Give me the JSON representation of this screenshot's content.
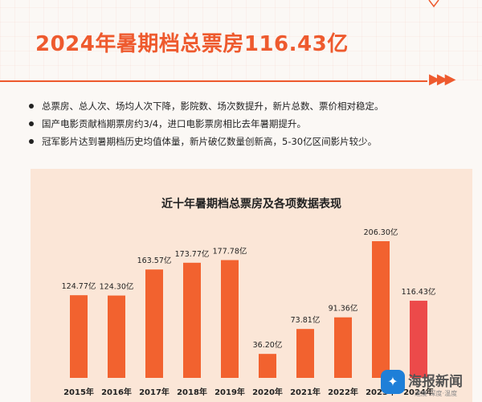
{
  "header": {
    "title": "2024年暑期档总票房116.43亿",
    "arrows": "▶▶▶"
  },
  "bullets": [
    "总票房、总人次、场均人次下降，影院数、场次数提升，新片总数、票价相对稳定。",
    "国产电影贡献档期票房约3/4，进口电影票房相比去年暑期提升。",
    "冠军影片达到暑期档历史均值体量，新片破亿数量创新高，5-30亿区间影片较少。"
  ],
  "colors": {
    "accent": "#ee5a2e",
    "bar": "#f2622f",
    "bar_highlight": "#ec4a4a",
    "panel": "#fbe6d7"
  },
  "watermark": {
    "name": "海报新闻",
    "sub": "速度·深度·温度",
    "logo_icon": "penguin-icon"
  },
  "chart_data": {
    "type": "bar",
    "title": "近十年暑期档总票房及各项数据表现",
    "categories": [
      "2015年",
      "2016年",
      "2017年",
      "2018年",
      "2019年",
      "2020年",
      "2021年",
      "2022年",
      "2023年",
      "2024年"
    ],
    "values": [
      124.77,
      124.3,
      163.57,
      173.77,
      177.78,
      36.2,
      73.81,
      91.36,
      206.3,
      116.43
    ],
    "value_labels": [
      "124.77亿",
      "124.30亿",
      "163.57亿",
      "173.77亿",
      "177.78亿",
      "36.20亿",
      "73.81亿",
      "91.36亿",
      "206.30亿",
      "116.43亿"
    ],
    "highlight_index": 9,
    "ylim": [
      0,
      206.3
    ],
    "xlabel": "",
    "ylabel": "",
    "grid": false
  }
}
